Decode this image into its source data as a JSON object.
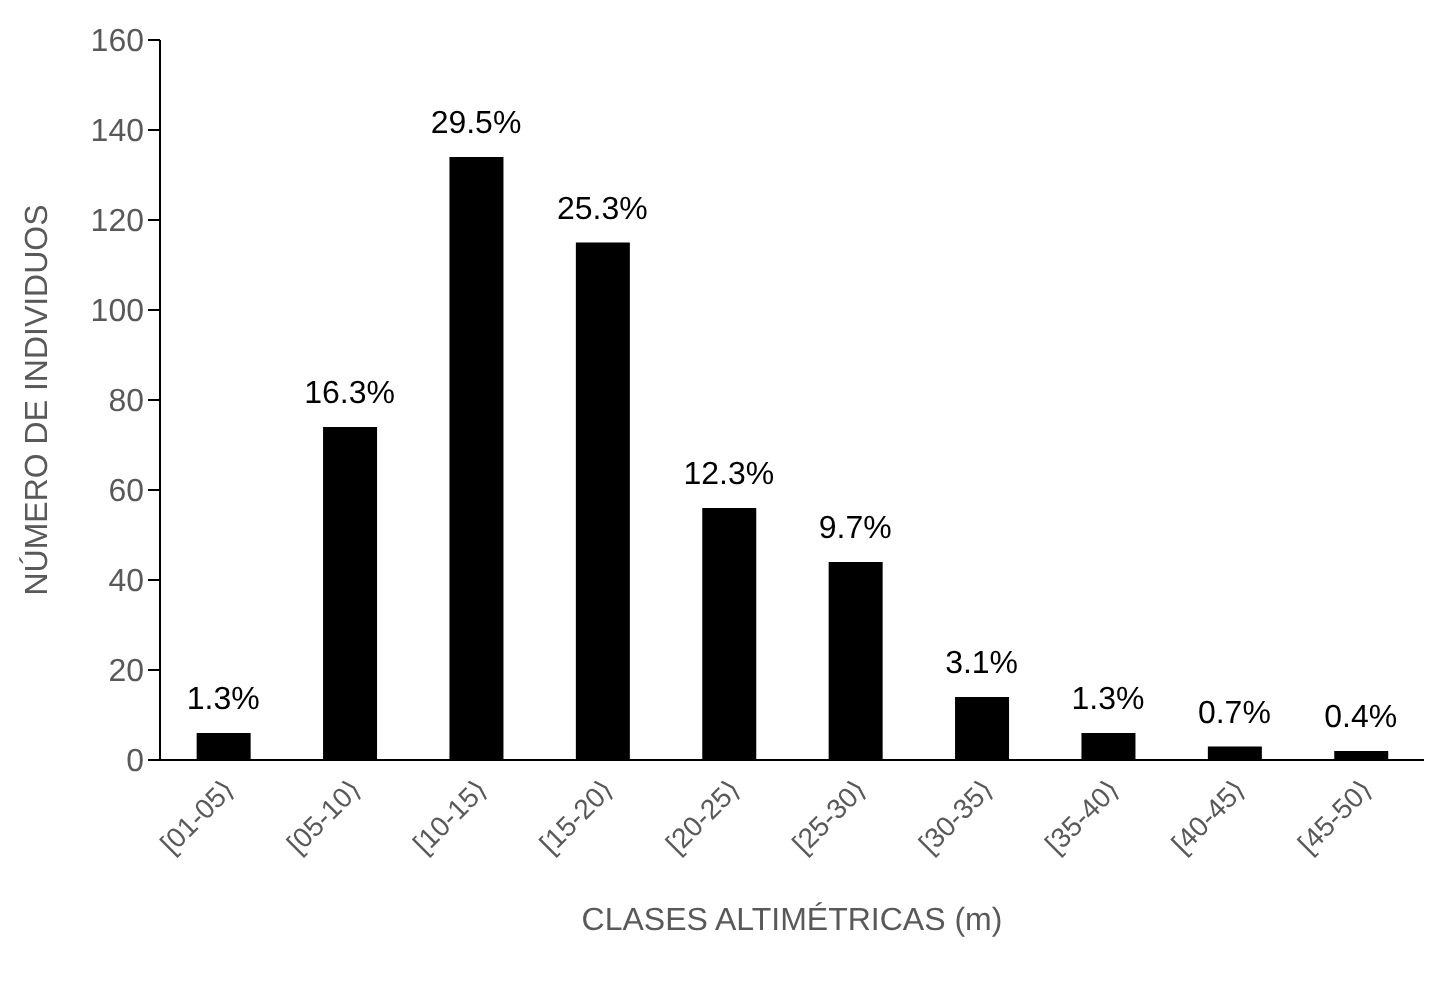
{
  "chart_data": {
    "type": "bar",
    "xlabel": "CLASES ALTIMÉTRICAS (m)",
    "ylabel": "NÚMERO DE INDIVIDUOS",
    "categories": [
      "[01-05⟩",
      "[05-10⟩",
      "[10-15⟩",
      "[15-20⟩",
      "[20-25⟩",
      "[25-30⟩",
      "[30-35⟩",
      "[35-40⟩",
      "[40-45⟩",
      "[45-50⟩"
    ],
    "values": [
      6,
      74,
      134,
      115,
      56,
      44,
      14,
      6,
      3,
      2
    ],
    "annotations": [
      {
        "text": "1.3%",
        "x": "[01-05⟩",
        "y": 6
      },
      {
        "text": "16.3%",
        "x": "[05-10⟩",
        "y": 74
      },
      {
        "text": "29.5%",
        "x": "[10-15⟩",
        "y": 134
      },
      {
        "text": "25.3%",
        "x": "[15-20⟩",
        "y": 115
      },
      {
        "text": "12.3%",
        "x": "[20-25⟩",
        "y": 56
      },
      {
        "text": "9.7%",
        "x": "[25-30⟩",
        "y": 44
      },
      {
        "text": "3.1%",
        "x": "[30-35⟩",
        "y": 14
      },
      {
        "text": "1.3%",
        "x": "[35-40⟩",
        "y": 6
      },
      {
        "text": "0.7%",
        "x": "[40-45⟩",
        "y": 3
      },
      {
        "text": "0.4%",
        "x": "[45-50⟩",
        "y": 2
      }
    ],
    "color": "#000000",
    "ylim": [
      0,
      160
    ],
    "yticks": [
      0,
      20,
      40,
      60,
      80,
      100,
      120,
      140,
      160
    ],
    "grid": false,
    "legend": false
  }
}
